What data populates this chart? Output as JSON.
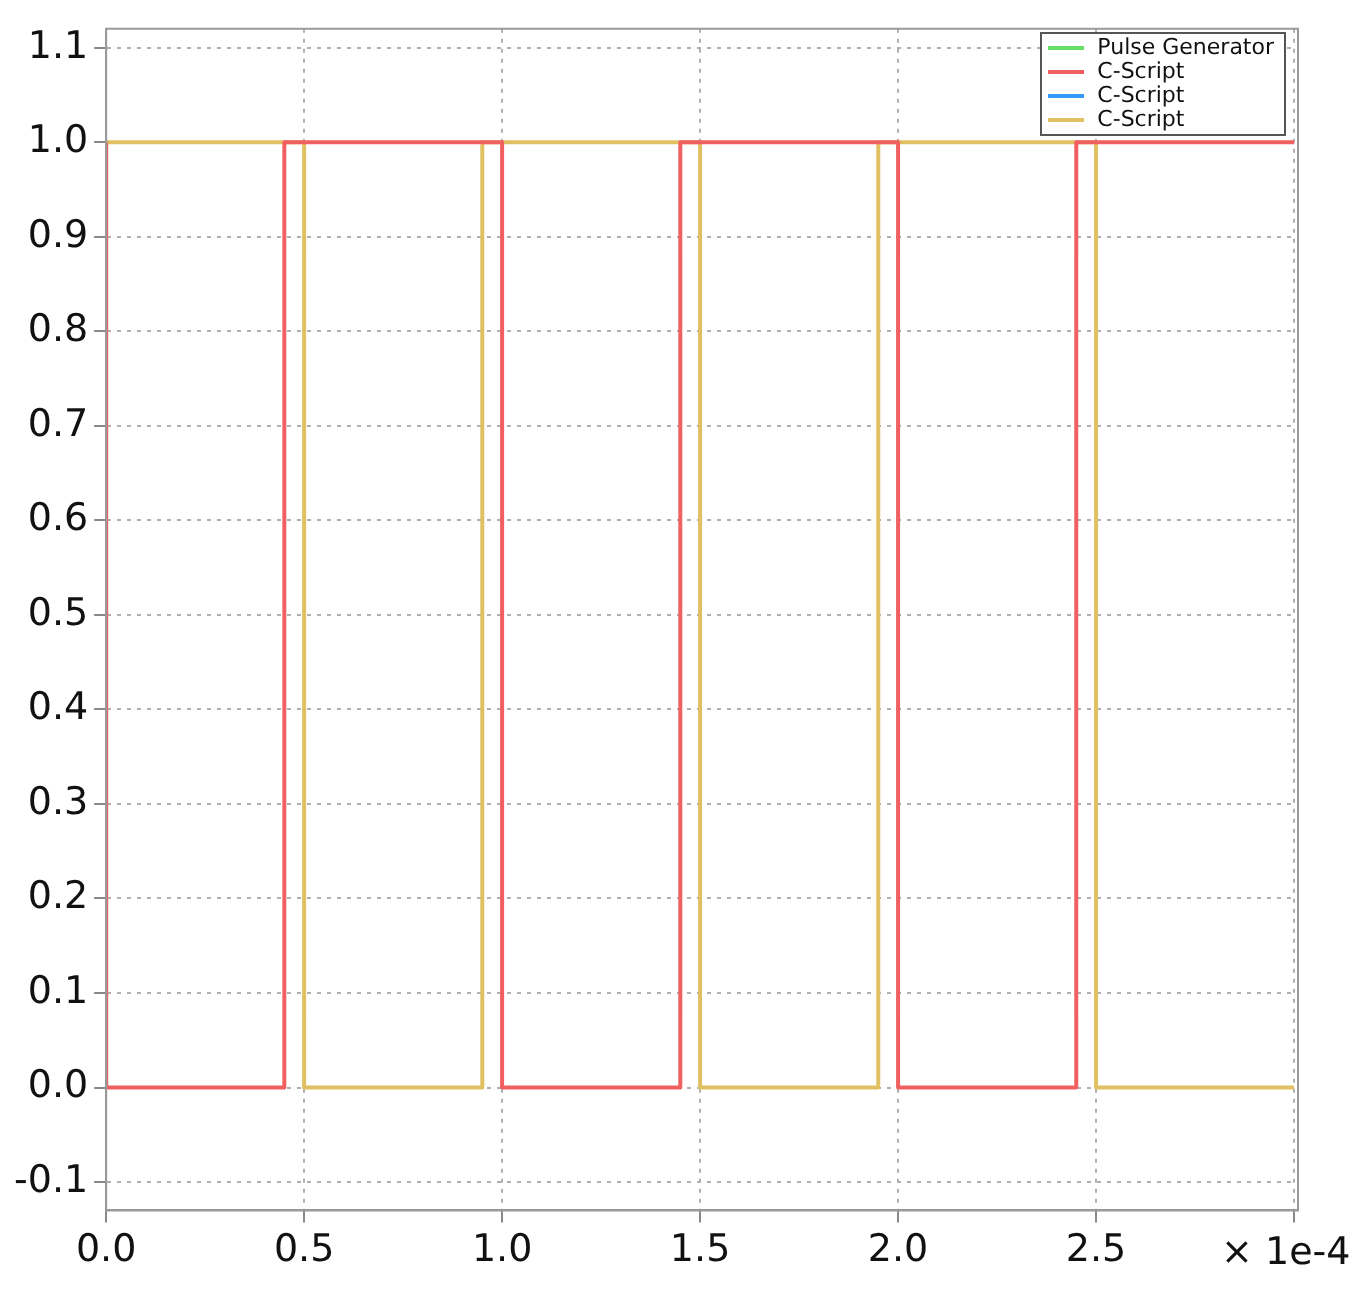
{
  "chart_data": {
    "type": "step",
    "xlim": [
      0,
      3.01
    ],
    "xticks": [
      {
        "value": 0,
        "label": "0.0"
      },
      0.5,
      {
        "value": 1,
        "label": "1.0"
      },
      1.5,
      {
        "value": 2,
        "label": "2.0"
      },
      2.5,
      {
        "value": 3,
        "label": null
      }
    ],
    "ylim": [
      -0.13,
      1.12
    ],
    "yticks": [
      -0.1,
      {
        "value": 0,
        "label": "0.0"
      },
      0.1,
      0.2,
      0.3,
      0.4,
      0.5,
      0.6,
      0.7,
      0.8,
      0.9,
      {
        "value": 1,
        "label": "1.0"
      },
      1.1
    ],
    "grid": true,
    "legend": "top right",
    "annotations": [
      "× 1e-4"
    ],
    "series": [
      {
        "name": "Pulse Generator",
        "color": "#66e066"
      },
      {
        "name": "C-Script",
        "color": "#f06060",
        "x": [
          0,
          0.45,
          1.0,
          1.45,
          2.0,
          2.45,
          3.0
        ],
        "values": [
          1,
          0,
          1,
          0,
          1,
          0,
          1
        ]
      },
      {
        "name": "C-Script",
        "color": "#3399ff"
      },
      {
        "name": "C-Script",
        "color": "#e0c060",
        "x": [
          0,
          0.5,
          0.95,
          1.5,
          1.95,
          2.5,
          2.95,
          3.0
        ],
        "values": [
          0,
          1,
          0,
          1,
          0,
          1,
          0,
          0
        ]
      }
    ]
  }
}
